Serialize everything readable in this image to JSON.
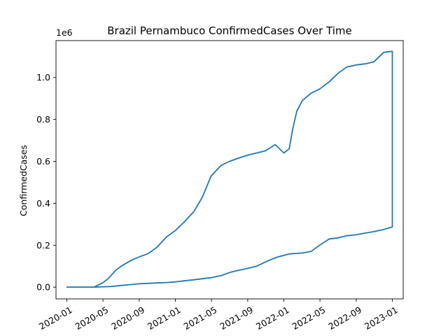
{
  "chart_data": {
    "type": "line",
    "title": "Brazil Pernambuco ConfirmedCases Over Time",
    "xlabel": "",
    "ylabel": "ConfirmedCases",
    "y_multiplier_label": "1e6",
    "color": "#1f77b4",
    "xlim": [
      2019.9,
      2023.1
    ],
    "ylim": [
      -0.056,
      1.176
    ],
    "x_ticks": [
      {
        "value": 2020.0,
        "label": "2020-01"
      },
      {
        "value": 2020.333,
        "label": "2020-05"
      },
      {
        "value": 2020.667,
        "label": "2020-09"
      },
      {
        "value": 2021.0,
        "label": "2021-01"
      },
      {
        "value": 2021.333,
        "label": "2021-05"
      },
      {
        "value": 2021.667,
        "label": "2021-09"
      },
      {
        "value": 2022.0,
        "label": "2022-01"
      },
      {
        "value": 2022.333,
        "label": "2022-05"
      },
      {
        "value": 2022.667,
        "label": "2022-09"
      },
      {
        "value": 2023.0,
        "label": "2023-01"
      }
    ],
    "y_ticks": [
      {
        "value": 0.0,
        "label": "0.0"
      },
      {
        "value": 0.2,
        "label": "0.2"
      },
      {
        "value": 0.4,
        "label": "0.4"
      },
      {
        "value": 0.6,
        "label": "0.6"
      },
      {
        "value": 0.8,
        "label": "0.8"
      },
      {
        "value": 1.0,
        "label": "1.0"
      }
    ],
    "series": [
      {
        "name": "ConfirmedCases",
        "x": [
          2020.0,
          2020.25,
          2020.33,
          2020.38,
          2020.45,
          2020.5,
          2020.6,
          2020.67,
          2020.75,
          2020.83,
          2020.92,
          2021.0,
          2021.08,
          2021.17,
          2021.25,
          2021.33,
          2021.42,
          2021.5,
          2021.58,
          2021.67,
          2021.75,
          2021.83,
          2021.92,
          2022.0,
          2022.05,
          2022.08,
          2022.12,
          2022.17,
          2022.25,
          2022.33,
          2022.42,
          2022.5,
          2022.58,
          2022.67,
          2022.75,
          2022.83,
          2022.92,
          2023.0,
          2023.0,
          2022.92,
          2022.83,
          2022.75,
          2022.67,
          2022.58,
          2022.5,
          2022.42,
          2022.33,
          2022.25,
          2022.17,
          2022.12,
          2022.08,
          2022.05,
          2022.0,
          2021.92,
          2021.83,
          2021.75,
          2021.67,
          2021.58,
          2021.5,
          2021.42,
          2021.33,
          2021.25,
          2021.17,
          2021.08,
          2021.0,
          2020.92,
          2020.83,
          2020.75,
          2020.67,
          2020.58,
          2020.5,
          2020.45,
          2020.4,
          2020.35,
          2020.3,
          2020.25,
          2020.0
        ],
        "y": [
          0.0,
          0.0,
          0.02,
          0.04,
          0.08,
          0.1,
          0.13,
          0.145,
          0.16,
          0.19,
          0.24,
          0.27,
          0.31,
          0.36,
          0.43,
          0.53,
          0.58,
          0.6,
          0.615,
          0.63,
          0.64,
          0.65,
          0.68,
          0.64,
          0.66,
          0.75,
          0.84,
          0.89,
          0.925,
          0.945,
          0.98,
          1.02,
          1.05,
          1.06,
          1.065,
          1.075,
          1.12,
          1.125,
          0.287,
          0.275,
          0.265,
          0.258,
          0.25,
          0.245,
          0.235,
          0.23,
          0.2,
          0.17,
          0.163,
          0.161,
          0.16,
          0.158,
          0.152,
          0.14,
          0.12,
          0.1,
          0.09,
          0.08,
          0.07,
          0.055,
          0.045,
          0.04,
          0.035,
          0.03,
          0.025,
          0.022,
          0.02,
          0.018,
          0.016,
          0.012,
          0.008,
          0.005,
          0.003,
          0.002,
          0.001,
          0.0,
          0.0
        ]
      }
    ]
  }
}
